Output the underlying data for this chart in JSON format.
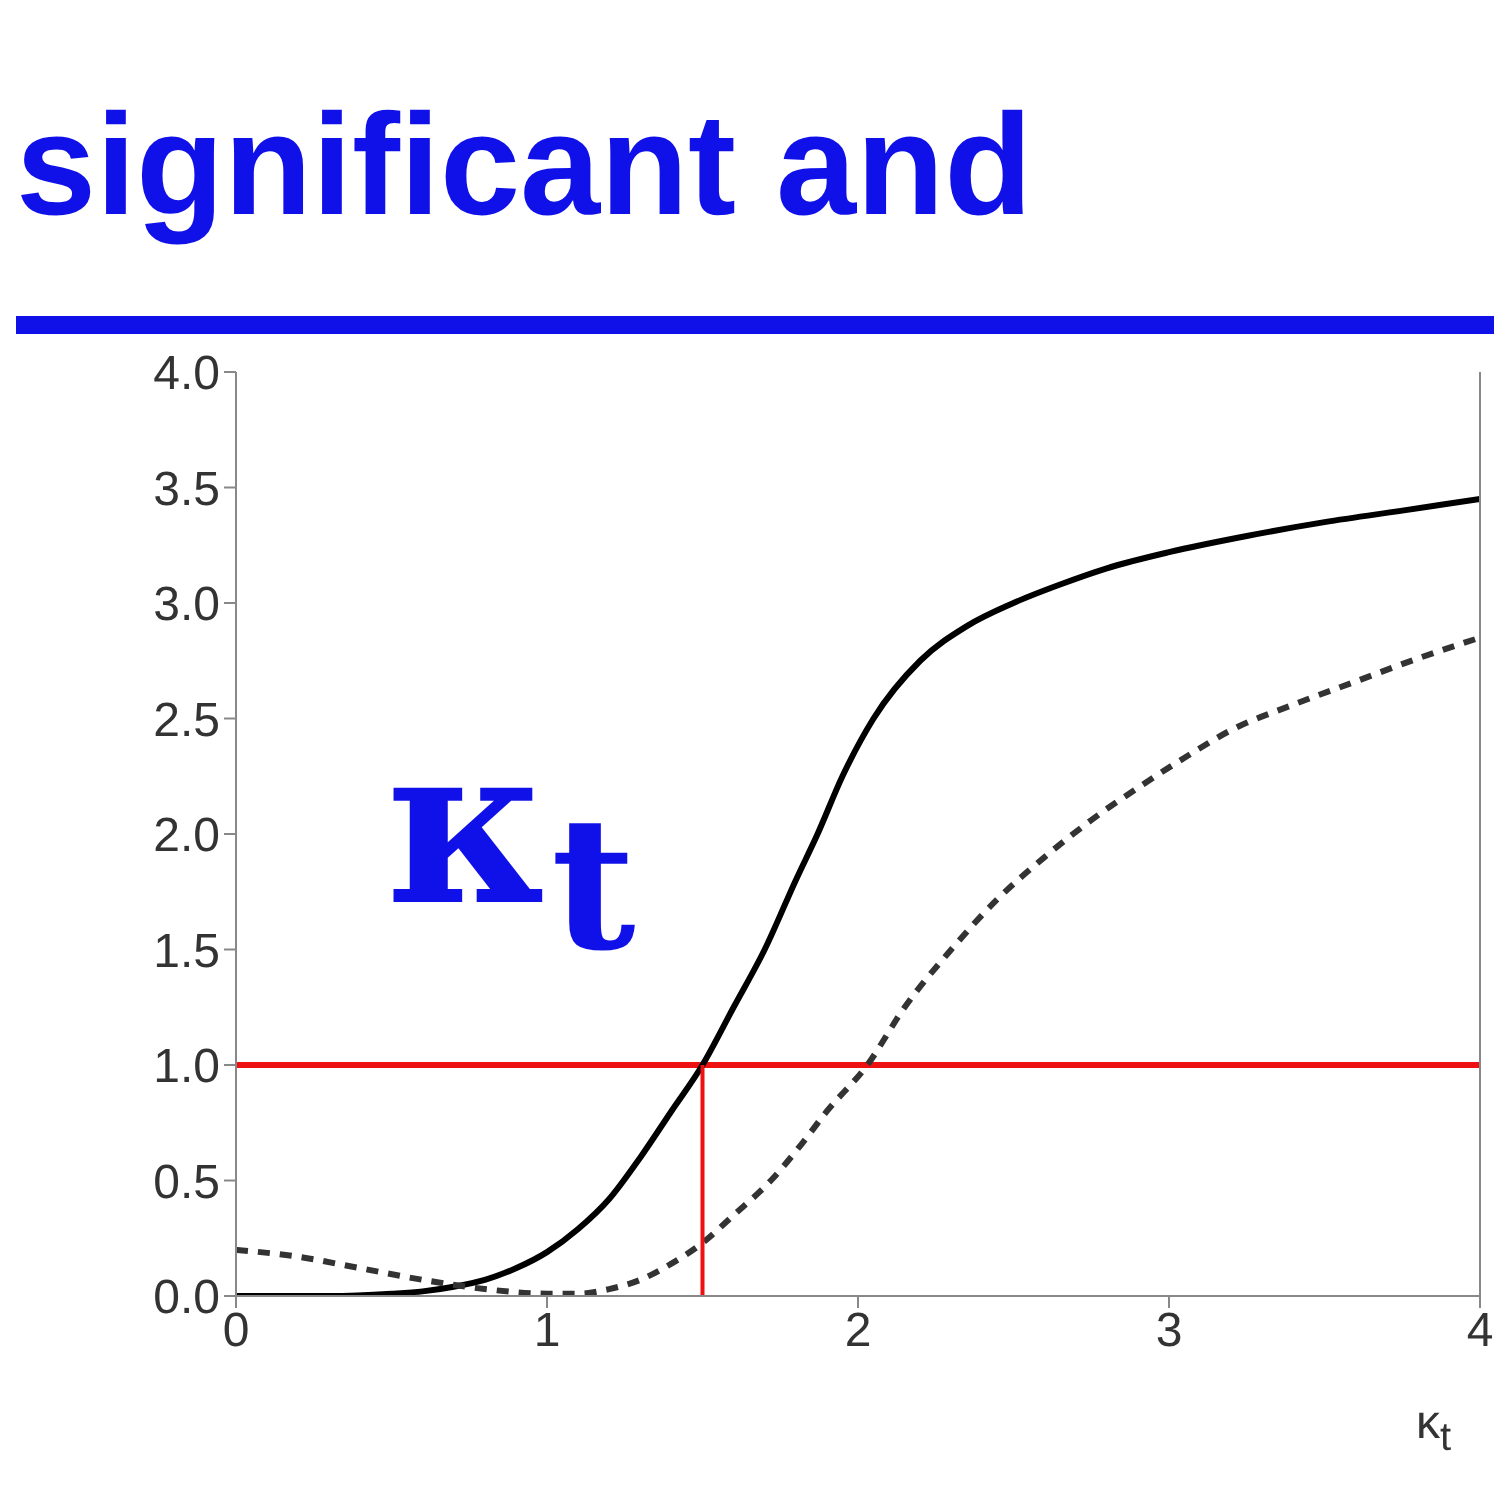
{
  "chart_data": {
    "type": "line",
    "title": "significant and",
    "xlabel": "κ$_{t}$",
    "annotations": [
      "κ$_{t}$"
    ],
    "xlim": [
      0,
      4
    ],
    "xticks": [
      0,
      1,
      2,
      3,
      4
    ],
    "ylim": [
      0,
      4
    ],
    "yticks": [
      {
        "value": 0,
        "label": "0.0"
      },
      {
        "value": 0.5,
        "label": "0.5"
      },
      {
        "value": 1,
        "label": "1.0"
      },
      {
        "value": 1.5,
        "label": "1.5"
      },
      {
        "value": 2,
        "label": "2.0"
      },
      {
        "value": 2.5,
        "label": "2.5"
      },
      {
        "value": 3,
        "label": "3.0"
      },
      {
        "value": 3.5,
        "label": "3.5"
      },
      {
        "value": 4,
        "label": "4.0"
      }
    ],
    "marker": "none",
    "ref_lines": [
      {
        "axis": "y",
        "value": 1,
        "color": "#ee1111"
      }
    ],
    "series": [
      {
        "color": "#000000",
        "line_style": "solid",
        "x": [
          0,
          0.3,
          0.5,
          0.6,
          0.7,
          0.8,
          0.9,
          1.0,
          1.1,
          1.2,
          1.3,
          1.4,
          1.5,
          1.6,
          1.7,
          1.8,
          1.87,
          1.95,
          2.05,
          2.2,
          2.35,
          2.5,
          2.65,
          2.8,
          3.0,
          3.25,
          3.5,
          3.75,
          4.0
        ],
        "values": [
          0,
          0,
          0.01,
          0.02,
          0.04,
          0.07,
          0.12,
          0.19,
          0.29,
          0.42,
          0.6,
          0.8,
          1.0,
          1.25,
          1.5,
          1.8,
          2.0,
          2.25,
          2.5,
          2.75,
          2.9,
          3.0,
          3.08,
          3.15,
          3.22,
          3.29,
          3.35,
          3.4,
          3.45
        ]
      },
      {
        "color": "#333333",
        "line_style": "dashed",
        "x": [
          0,
          0.2,
          0.4,
          0.6,
          0.8,
          1.0,
          1.1,
          1.2,
          1.3,
          1.4,
          1.5,
          1.6,
          1.72,
          1.82,
          1.9,
          2.03,
          2.15,
          2.3,
          2.45,
          2.6,
          2.75,
          2.9,
          3.05,
          3.2,
          3.4,
          3.6,
          3.8,
          4.0
        ],
        "values": [
          0.2,
          0.17,
          0.12,
          0.07,
          0.03,
          0.01,
          0.01,
          0.03,
          0.07,
          0.14,
          0.23,
          0.35,
          0.5,
          0.66,
          0.8,
          1.0,
          1.25,
          1.5,
          1.72,
          1.9,
          2.06,
          2.2,
          2.33,
          2.45,
          2.56,
          2.66,
          2.76,
          2.85
        ]
      },
      {
        "color": "#ee1111",
        "line_style": "solid",
        "x": [
          1.5,
          1.5
        ],
        "values": [
          0,
          1
        ]
      }
    ]
  }
}
